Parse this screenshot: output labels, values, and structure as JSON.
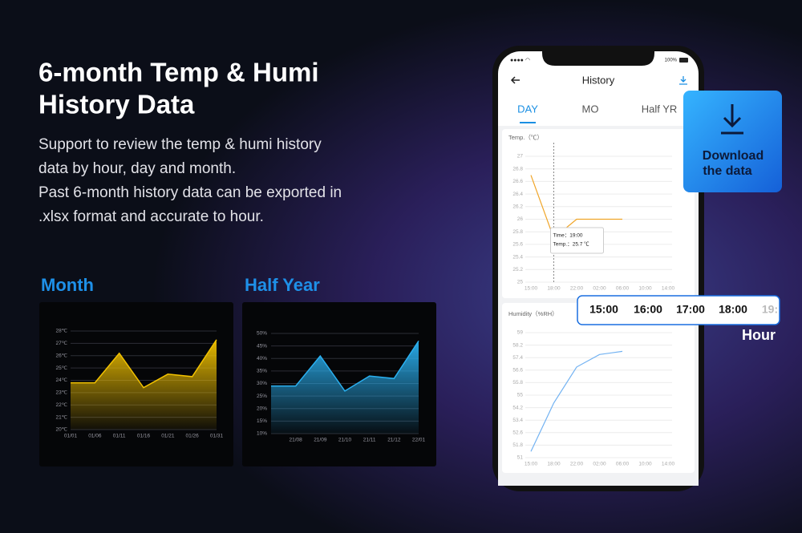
{
  "header": {
    "title_lines": [
      "6-month Temp & Humi",
      "History Data"
    ],
    "description_lines": [
      "Support to review the temp & humi history",
      "data by hour, day and month.",
      "Past 6-month history data can be exported in",
      ".xlsx format and accurate to hour."
    ]
  },
  "phone": {
    "battery": "100%",
    "screen_title": "History",
    "tabs": [
      "DAY",
      "MO",
      "Half YR"
    ]
  },
  "download": {
    "label_lines": [
      "Download",
      "the data"
    ]
  },
  "hour_strip": {
    "times": [
      "15:00",
      "16:00",
      "17:00",
      "18:00",
      "19:"
    ],
    "label": "Hour"
  },
  "chart_data": [
    {
      "type": "area",
      "title": "Month",
      "categories": [
        "01/01",
        "01/06",
        "01/11",
        "01/16",
        "01/21",
        "01/26",
        "01/31"
      ],
      "values": [
        23.8,
        23.8,
        26.2,
        23.4,
        24.5,
        24.3,
        27.3
      ],
      "color": "#f2c200",
      "ylim": [
        20,
        28
      ],
      "yticks": [
        {
          "value": 20,
          "label": "20℃"
        },
        {
          "value": 21,
          "label": "21℃"
        },
        {
          "value": 22,
          "label": "22℃"
        },
        {
          "value": 23,
          "label": "23℃"
        },
        {
          "value": 24,
          "label": "24℃"
        },
        {
          "value": 25,
          "label": "25℃"
        },
        {
          "value": 26,
          "label": "26℃"
        },
        {
          "value": 27,
          "label": "27℃"
        },
        {
          "value": 28,
          "label": "28℃"
        }
      ],
      "grid": true
    },
    {
      "type": "area",
      "title": "Half Year",
      "categories": [
        null,
        "21/08",
        "21/09",
        "21/10",
        "21/11",
        "21/12",
        "22/01"
      ],
      "values": [
        29,
        29,
        41,
        27,
        33,
        32,
        47
      ],
      "color": "#2ab0f0",
      "ylim": [
        10,
        50
      ],
      "yticks": [
        {
          "value": 10,
          "label": "10%"
        },
        {
          "value": 15,
          "label": "15%"
        },
        {
          "value": 20,
          "label": "20%"
        },
        {
          "value": 25,
          "label": "25%"
        },
        {
          "value": 30,
          "label": "30%"
        },
        {
          "value": 35,
          "label": "35%"
        },
        {
          "value": 40,
          "label": "40%"
        },
        {
          "value": 45,
          "label": "45%"
        },
        {
          "value": 50,
          "label": "50%"
        }
      ],
      "grid": true
    },
    {
      "type": "line",
      "y_label": "Temp.（℃）",
      "categories": [
        "15:00",
        "18:00",
        "22:00",
        "02:00",
        "06:00",
        "10:00",
        "14:00"
      ],
      "values": [
        26.7,
        25.7,
        26,
        26,
        26,
        null,
        null
      ],
      "color": "#f0a528",
      "ylim": [
        25,
        27
      ],
      "yticks": [
        25,
        25.2,
        25.4,
        25.6,
        25.8,
        26,
        26.2,
        26.4,
        26.6,
        26.8,
        27
      ],
      "grid": true,
      "annotations": [
        "Time：19:00",
        "Temp.：25.7 ℃"
      ]
    },
    {
      "type": "line",
      "y_label": "Humidity（%RH）",
      "categories": [
        "15:00",
        "18:00",
        "22:00",
        "02:00",
        "06:00",
        "10:00",
        "14:00"
      ],
      "values": [
        51.4,
        54.5,
        56.8,
        57.6,
        57.8,
        null,
        null
      ],
      "color": "#72b2f2",
      "ylim": [
        51,
        59
      ],
      "yticks": [
        51,
        51.8,
        52.6,
        53.4,
        54.2,
        55,
        55.8,
        56.6,
        57.4,
        58.2,
        59
      ],
      "grid": true
    }
  ]
}
